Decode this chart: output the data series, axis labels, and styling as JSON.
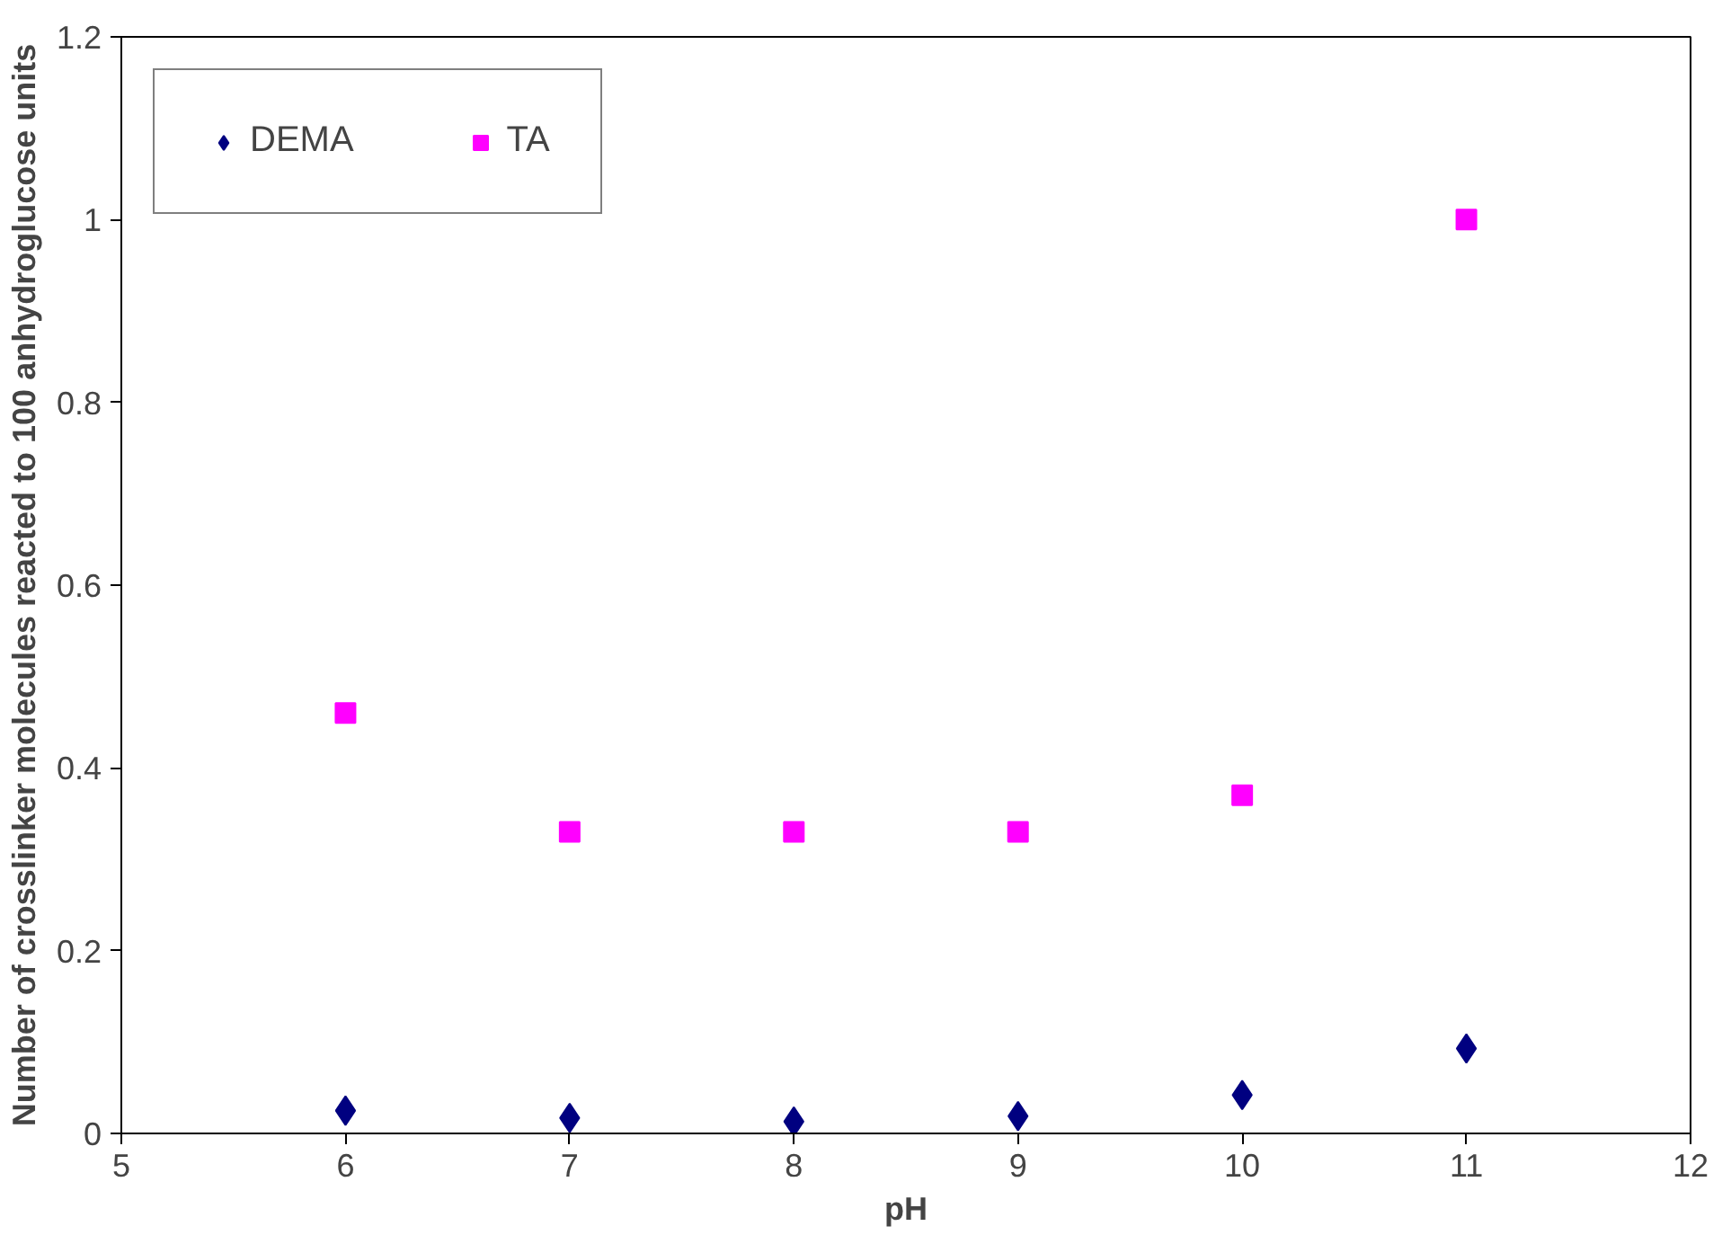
{
  "chart_data": {
    "type": "scatter",
    "xlabel": "pH",
    "ylabel": "Number of crosslinker molecules reacted to 100 anhydroglucose units",
    "x": [
      6,
      7,
      8,
      9,
      10,
      11
    ],
    "series": [
      {
        "name": "DEMA",
        "color": "#000080",
        "marker": "diamond",
        "values": [
          0.025,
          0.017,
          0.013,
          0.019,
          0.042,
          0.093
        ]
      },
      {
        "name": "TA",
        "color": "#ff00ff",
        "marker": "square",
        "values": [
          0.46,
          0.33,
          0.33,
          0.33,
          0.37,
          1.0
        ]
      }
    ],
    "xlim": [
      5,
      12
    ],
    "xticks": [
      5,
      6,
      7,
      8,
      9,
      10,
      11,
      12
    ],
    "ylim": [
      0,
      1.2
    ],
    "yticks": [
      0,
      {
        "value": 0.2,
        "label": "0.2"
      },
      {
        "value": 0.4,
        "label": "0.4"
      },
      {
        "value": 0.6,
        "label": "0.6"
      },
      {
        "value": 0.8,
        "label": "0.8"
      },
      1,
      {
        "value": 1.2,
        "label": "1.2"
      }
    ],
    "grid": false,
    "legend": "top left"
  }
}
